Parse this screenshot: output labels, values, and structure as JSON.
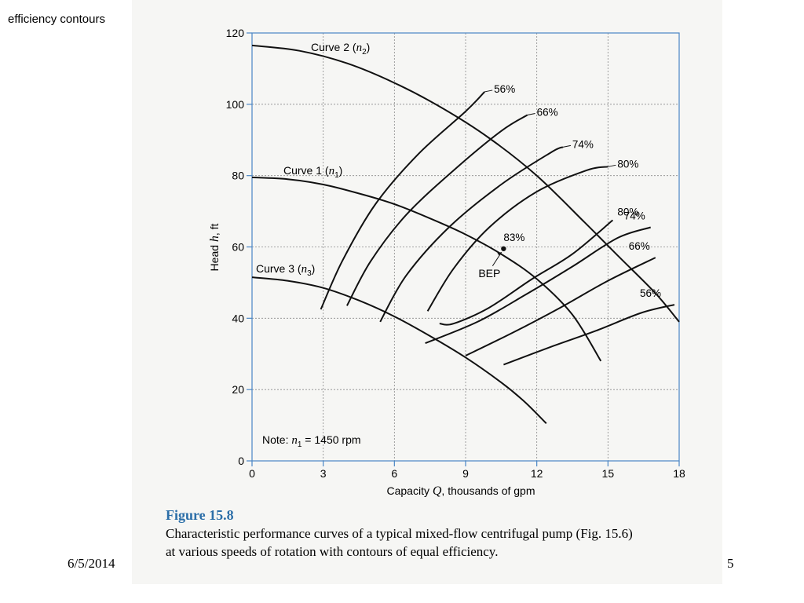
{
  "slide": {
    "title": "efficiency contours",
    "date": "6/5/2014",
    "page_number": "5"
  },
  "figure": {
    "label": "Figure 15.8",
    "caption_line1": "Characteristic performance curves of a typical mixed-flow centrifugal pump (Fig. 15.6)",
    "caption_line2": "at various speeds of rotation with contours of equal efficiency."
  },
  "chart_data": {
    "type": "line",
    "xlabel_main": "Capacity ",
    "xlabel_symbol": "Q",
    "xlabel_rest": ", thousands of gpm",
    "ylabel_main": "Head ",
    "ylabel_symbol": "h",
    "ylabel_rest": ", ft",
    "xlim": [
      0,
      18
    ],
    "ylim": [
      0,
      120
    ],
    "x_ticks": [
      "0",
      "3",
      "6",
      "9",
      "12",
      "15",
      "18"
    ],
    "y_ticks": [
      "0",
      "20",
      "40",
      "60",
      "80",
      "100",
      "120"
    ],
    "grid": true,
    "note_prefix": "Note: ",
    "note_symbol": "n",
    "note_sub": "1",
    "note_rest": " = 1450 rpm",
    "bep": {
      "x": 10.6,
      "y": 59.5,
      "label": "BEP",
      "value_label": "83%"
    },
    "series": [
      {
        "name": "Curve 2 (n2)",
        "label_main": "Curve 2 (",
        "label_symbol": "n",
        "label_sub": "2",
        "label_end": ")",
        "x": [
          0,
          2,
          4,
          6,
          8,
          10,
          12,
          14,
          15.5,
          17,
          18
        ],
        "y": [
          116.5,
          115,
          111.5,
          106,
          99,
          90.5,
          80,
          67,
          57,
          47,
          39
        ]
      },
      {
        "name": "Curve 1 (n1)",
        "label_main": "Curve 1 (",
        "label_symbol": "n",
        "label_sub": "1",
        "label_end": ")",
        "x": [
          0,
          1.5,
          3,
          4.5,
          6,
          7.5,
          9,
          10.5,
          12,
          13.5,
          14.7
        ],
        "y": [
          79.5,
          79,
          77.5,
          75,
          72,
          68,
          63.5,
          58,
          51,
          41,
          28
        ]
      },
      {
        "name": "Curve 3 (n3)",
        "label_main": "Curve 3 (",
        "label_symbol": "n",
        "label_sub": "3",
        "label_end": ")",
        "x": [
          0,
          1.5,
          3,
          4.5,
          6,
          7.5,
          9,
          10.5,
          11.5,
          12.4
        ],
        "y": [
          51.5,
          50.5,
          48.5,
          45,
          40.5,
          35,
          29,
          22,
          16.5,
          10.5
        ]
      }
    ],
    "efficiency_contours": [
      {
        "label": "56%",
        "x": [
          2.9,
          3.8,
          5.2,
          7,
          9,
          9.8
        ],
        "y": [
          42.5,
          56,
          72,
          86,
          98,
          103.5
        ],
        "label2": "56%",
        "x2": [
          10.6,
          12.6,
          14.5,
          16.4,
          17.8
        ],
        "y2": [
          27,
          32,
          36.5,
          41.5,
          43.8
        ]
      },
      {
        "label": "66%",
        "x": [
          4,
          5,
          6.5,
          8.5,
          10.5,
          11.6
        ],
        "y": [
          43.5,
          56,
          69,
          81.5,
          92.5,
          97
        ],
        "label2": "66%",
        "x2": [
          9,
          11,
          13,
          15,
          17
        ],
        "y2": [
          29.5,
          36,
          43,
          50.5,
          57
        ]
      },
      {
        "label": "74%",
        "x": [
          5.4,
          6.5,
          8.3,
          10.5,
          12.6,
          13.1
        ],
        "y": [
          39,
          52,
          65.5,
          77.5,
          86.5,
          88
        ],
        "label2": "74%",
        "x2": [
          7.3,
          9.5,
          11.5,
          13.5,
          15.4,
          16.8
        ],
        "y2": [
          33,
          39,
          46.5,
          54.5,
          62.5,
          65.5
        ]
      },
      {
        "label": "80%",
        "x": [
          7.4,
          8.5,
          10,
          12,
          14.1,
          15
        ],
        "y": [
          42,
          54,
          65.5,
          75.5,
          81.5,
          82.5
        ],
        "label2": "80%",
        "x2": [
          7.9,
          8.5,
          10,
          11.8,
          13.5,
          15.2
        ],
        "y2": [
          38.5,
          38.5,
          43,
          51,
          58,
          67.5
        ]
      }
    ]
  }
}
